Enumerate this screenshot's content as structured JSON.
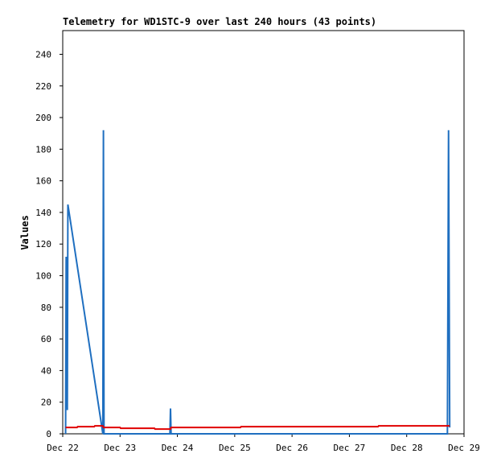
{
  "chart_data": {
    "type": "line",
    "title": "Telemetry for WD1STC-9 over last 240 hours (43 points)",
    "y_label": "Values",
    "xlim": [
      0,
      7
    ],
    "xticks": [
      {
        "value": 0,
        "label": "Dec 22"
      },
      {
        "value": 1,
        "label": "Dec 23"
      },
      {
        "value": 2,
        "label": "Dec 24"
      },
      {
        "value": 3,
        "label": "Dec 25"
      },
      {
        "value": 4,
        "label": "Dec 26"
      },
      {
        "value": 5,
        "label": "Dec 27"
      },
      {
        "value": 6,
        "label": "Dec 28"
      },
      {
        "value": 7,
        "label": "Dec 29"
      }
    ],
    "ylim": [
      0,
      255
    ],
    "yticks": [
      0,
      20,
      40,
      60,
      80,
      100,
      120,
      140,
      160,
      180,
      200,
      220,
      240
    ],
    "series": [
      {
        "color": "#e00000",
        "x": [
          0.05,
          0.25,
          0.26,
          0.55,
          0.56,
          0.7,
          0.71,
          1.0,
          1.01,
          1.6,
          1.61,
          1.88,
          1.89,
          3.1,
          3.11,
          5.5,
          5.51,
          6.75
        ],
        "values": [
          4,
          4,
          4.5,
          4.5,
          5,
          5,
          4,
          4,
          3.5,
          3.5,
          3,
          3,
          4,
          4,
          4.5,
          4.5,
          5,
          5
        ]
      },
      {
        "color": "#1f6fc0",
        "x": [
          0.05,
          0.06,
          0.08,
          0.09,
          0.7,
          0.71,
          0.72,
          1.87,
          1.88,
          1.89,
          6.71,
          6.72,
          6.73,
          6.75
        ],
        "values": [
          0,
          112,
          15,
          145,
          0,
          192,
          0,
          0,
          16,
          0,
          0,
          97,
          192,
          4
        ]
      }
    ]
  }
}
